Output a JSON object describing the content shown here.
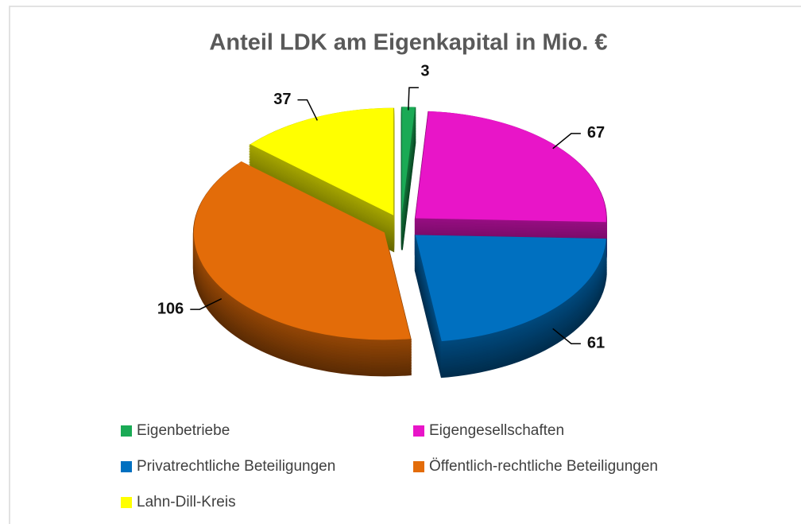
{
  "chart_data": {
    "type": "pie3d",
    "title": "Anteil LDK am Eigenkapital in Mio. €",
    "categories": [
      "Eigenbetriebe",
      "Eigengesellschaften",
      "Privatrechtliche Beteiligungen",
      "Öffentlich-rechtliche Beteiligungen",
      "Lahn-Dill-Kreis"
    ],
    "values": [
      3,
      67,
      61,
      106,
      37
    ],
    "colors": [
      "#1aaa55",
      "#e815c8",
      "#0070c0",
      "#e36c09",
      "#ffff00"
    ],
    "legend": "bottom"
  }
}
